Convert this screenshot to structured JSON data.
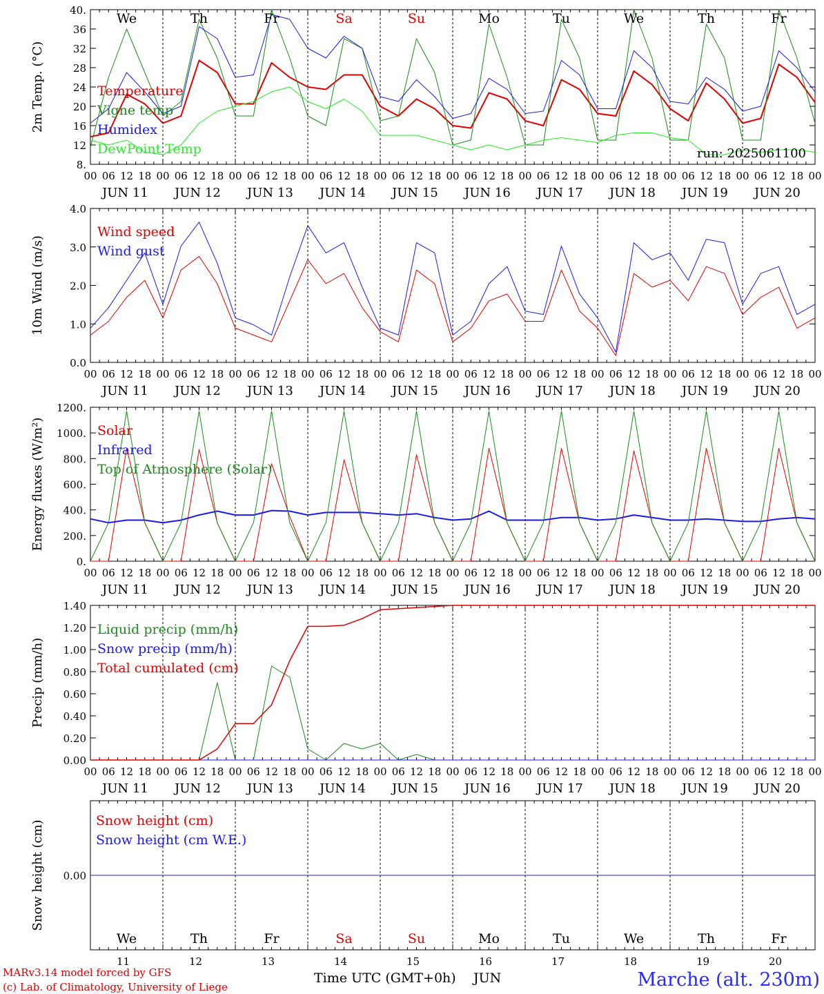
{
  "chart_data": [
    {
      "type": "line",
      "ylabel": "2m Temp. (°C)",
      "ylim": [
        8,
        40
      ],
      "yticks": [
        "8.",
        "12",
        "16",
        "20",
        "24",
        "28",
        "32",
        "36",
        "40."
      ],
      "days": [
        {
          "label": "We",
          "color": "#000000"
        },
        {
          "label": "Th",
          "color": "#000000"
        },
        {
          "label": "Fr",
          "color": "#000000"
        },
        {
          "label": "Sa",
          "color": "#e00000"
        },
        {
          "label": "Su",
          "color": "#e00000"
        },
        {
          "label": "Mo",
          "color": "#000000"
        },
        {
          "label": "Tu",
          "color": "#000000"
        },
        {
          "label": "We",
          "color": "#000000"
        },
        {
          "label": "Th",
          "color": "#000000"
        },
        {
          "label": "Fr",
          "color": "#000000"
        }
      ],
      "annotation": "run: 2025061100",
      "x": [
        "11 00",
        "11 06",
        "11 12",
        "11 18",
        "12 00",
        "12 06",
        "12 12",
        "12 18",
        "13 00",
        "13 06",
        "13 12",
        "13 18",
        "14 00",
        "14 06",
        "14 12",
        "14 18",
        "15 00",
        "15 06",
        "15 12",
        "15 18",
        "16 00",
        "16 06",
        "16 12",
        "16 18",
        "17 00",
        "17 06",
        "17 12",
        "17 18",
        "18 00",
        "18 06",
        "18 12",
        "18 18",
        "19 00",
        "19 06",
        "19 12",
        "19 18",
        "20 00",
        "20 06",
        "20 12",
        "20 18",
        "21 00"
      ],
      "series": [
        {
          "name": "Temperature",
          "color": "#e00000",
          "width": 2,
          "values": [
            13.7,
            14.5,
            22.5,
            20.5,
            16.5,
            18,
            29.5,
            27,
            20.5,
            20.5,
            29,
            26,
            24,
            23.5,
            26.5,
            26.5,
            20,
            18,
            21.5,
            19.5,
            16,
            15.5,
            22.8,
            21.5,
            17,
            16,
            25.5,
            23.5,
            18.5,
            18,
            27.3,
            24.5,
            19.5,
            17,
            24.8,
            21.5,
            16.5,
            17.5,
            28.7,
            26,
            20.8
          ]
        },
        {
          "name": "Vigne temp",
          "color": "#1a8a1a",
          "width": 1,
          "values": [
            11.5,
            26,
            36,
            27,
            18,
            21,
            38,
            30,
            18,
            18,
            40,
            30,
            18,
            16,
            34,
            32,
            17,
            18,
            34,
            27,
            12,
            13,
            37,
            26,
            12,
            12,
            38,
            30,
            13,
            13,
            40,
            30,
            13,
            13,
            37,
            30,
            13,
            13,
            40,
            30,
            16.5
          ]
        },
        {
          "name": "Humidex",
          "color": "#1a1aee",
          "width": 1,
          "values": [
            16.5,
            19.5,
            27,
            23,
            18.5,
            20,
            36.5,
            34,
            26,
            26.5,
            39,
            38,
            32,
            30,
            34.5,
            32,
            22,
            21,
            25.5,
            22,
            17.5,
            18.5,
            25.8,
            23.5,
            18.5,
            19,
            29.5,
            26.5,
            19.5,
            19.5,
            31.5,
            28,
            21,
            20.5,
            26,
            23.5,
            19,
            20,
            31.5,
            28,
            23
          ]
        },
        {
          "name": "DewPoint Temp",
          "color": "#22ee22",
          "width": 1,
          "values": [
            13,
            12,
            13,
            10.5,
            10,
            12,
            16.5,
            19,
            20,
            21,
            23,
            24,
            21,
            19.5,
            21.5,
            19,
            14,
            14,
            14,
            13,
            12,
            11,
            12,
            11,
            12,
            13,
            13.5,
            13,
            12.5,
            14,
            14.5,
            14.5,
            13.5,
            13,
            10,
            10,
            11,
            10.5,
            11,
            11,
            10.5
          ]
        }
      ]
    },
    {
      "type": "line",
      "ylabel": "10m Wind (m/s)",
      "ylim": [
        0,
        4.5
      ],
      "yticks": [
        "0.0",
        "1.0",
        "2.0",
        "3.0",
        "4.0"
      ],
      "x": [
        "11 00",
        "11 06",
        "11 12",
        "11 18",
        "12 00",
        "12 06",
        "12 12",
        "12 18",
        "13 00",
        "13 06",
        "13 12",
        "13 18",
        "14 00",
        "14 06",
        "14 12",
        "14 18",
        "15 00",
        "15 06",
        "15 12",
        "15 18",
        "16 00",
        "16 06",
        "16 12",
        "16 18",
        "17 00",
        "17 06",
        "17 12",
        "17 18",
        "18 00",
        "18 06",
        "18 12",
        "18 18",
        "19 00",
        "19 06",
        "19 12",
        "19 18",
        "20 00",
        "20 06",
        "20 12",
        "20 18",
        "21 00"
      ],
      "series": [
        {
          "name": "Wind speed",
          "color": "#e00000",
          "width": 1,
          "values": [
            0.8,
            1.2,
            1.9,
            2.4,
            1.3,
            2.7,
            3.1,
            2.3,
            1.0,
            0.8,
            0.6,
            1.8,
            3.0,
            2.3,
            2.6,
            1.6,
            0.9,
            0.6,
            2.7,
            2.3,
            0.6,
            1.0,
            1.8,
            2.0,
            1.2,
            1.2,
            2.7,
            1.5,
            1.0,
            0.2,
            2.6,
            2.2,
            2.4,
            1.8,
            2.8,
            2.6,
            1.4,
            1.9,
            2.2,
            1.0,
            1.3
          ]
        },
        {
          "name": "Wind gust",
          "color": "#1a1aee",
          "width": 1,
          "values": [
            1.0,
            1.6,
            2.4,
            3.2,
            1.7,
            3.4,
            4.1,
            2.9,
            1.3,
            1.1,
            0.8,
            2.5,
            4.0,
            3.2,
            3.5,
            2.2,
            1.0,
            0.8,
            3.5,
            3.2,
            0.8,
            1.2,
            2.3,
            2.8,
            1.5,
            1.4,
            3.4,
            2.0,
            1.3,
            0.3,
            3.5,
            3.0,
            3.2,
            2.4,
            3.6,
            3.5,
            1.7,
            2.6,
            2.8,
            1.4,
            1.7
          ]
        }
      ]
    },
    {
      "type": "line",
      "ylabel": "Energy fluxes (W/m²)",
      "ylim": [
        0,
        1200
      ],
      "yticks": [
        "0.",
        "200.",
        "400.",
        "600.",
        "800.",
        "1000.",
        "1200."
      ],
      "x": [
        "11 00",
        "11 06",
        "11 12",
        "11 18",
        "12 00",
        "12 06",
        "12 12",
        "12 18",
        "13 00",
        "13 06",
        "13 12",
        "13 18",
        "14 00",
        "14 06",
        "14 12",
        "14 18",
        "15 00",
        "15 06",
        "15 12",
        "15 18",
        "16 00",
        "16 06",
        "16 12",
        "16 18",
        "17 00",
        "17 06",
        "17 12",
        "17 18",
        "18 00",
        "18 06",
        "18 12",
        "18 18",
        "19 00",
        "19 06",
        "19 12",
        "19 18",
        "20 00",
        "20 06",
        "20 12",
        "20 18",
        "21 00"
      ],
      "series": [
        {
          "name": "Solar",
          "color": "#e00000",
          "width": 1,
          "values": [
            0,
            0,
            880,
            300,
            0,
            0,
            870,
            300,
            0,
            0,
            760,
            350,
            0,
            0,
            790,
            300,
            0,
            0,
            830,
            300,
            0,
            0,
            880,
            300,
            0,
            0,
            880,
            300,
            0,
            0,
            860,
            300,
            0,
            0,
            880,
            300,
            0,
            0,
            880,
            300,
            0
          ]
        },
        {
          "name": "Infrared",
          "color": "#1a1aee",
          "width": 2,
          "values": [
            330,
            300,
            320,
            320,
            300,
            320,
            360,
            390,
            360,
            360,
            395,
            390,
            360,
            380,
            380,
            380,
            370,
            360,
            370,
            340,
            320,
            330,
            390,
            320,
            320,
            320,
            340,
            340,
            320,
            330,
            360,
            340,
            320,
            320,
            330,
            320,
            310,
            310,
            330,
            340,
            330
          ]
        },
        {
          "name": "Top of Atmosphere (Solar)",
          "color": "#1a8a1a",
          "width": 1,
          "values": [
            0,
            300,
            1170,
            300,
            0,
            300,
            1170,
            300,
            0,
            300,
            1170,
            300,
            0,
            300,
            1170,
            300,
            0,
            300,
            1170,
            300,
            0,
            300,
            1170,
            300,
            0,
            300,
            1170,
            300,
            0,
            300,
            1170,
            300,
            0,
            300,
            1170,
            300,
            0,
            300,
            1170,
            300,
            0
          ]
        }
      ]
    },
    {
      "type": "line",
      "ylabel": "Precip (mm/h)",
      "ylim": [
        0,
        1.4
      ],
      "yticks": [
        "0.00",
        "0.20",
        "0.40",
        "0.60",
        "0.80",
        "1.00",
        "1.20",
        "1.40"
      ],
      "x": [
        "11 00",
        "11 06",
        "11 12",
        "11 18",
        "12 00",
        "12 06",
        "12 12",
        "12 18",
        "13 00",
        "13 06",
        "13 12",
        "13 18",
        "14 00",
        "14 06",
        "14 12",
        "14 18",
        "15 00",
        "15 06",
        "15 12",
        "15 18",
        "16 00",
        "16 06",
        "16 12",
        "16 18",
        "17 00",
        "17 06",
        "17 12",
        "17 18",
        "18 00",
        "18 06",
        "18 12",
        "18 18",
        "19 00",
        "19 06",
        "19 12",
        "19 18",
        "20 00",
        "20 06",
        "20 12",
        "20 18",
        "21 00"
      ],
      "series": [
        {
          "name": "Liquid precip (mm/h)",
          "color": "#1a8a1a",
          "width": 1,
          "values": [
            0,
            0,
            0,
            0,
            0,
            0,
            0,
            0.7,
            0,
            0,
            0.85,
            0.75,
            0.1,
            0,
            0.15,
            0.1,
            0.15,
            0,
            0.05,
            0,
            0,
            0,
            0,
            0,
            0,
            0,
            0,
            0,
            0,
            0,
            0,
            0,
            0,
            0,
            0,
            0,
            0,
            0,
            0,
            0,
            0
          ]
        },
        {
          "name": "Snow precip (mm/h)",
          "color": "#1a1aee",
          "width": 1,
          "values": [
            0,
            0,
            0,
            0,
            0,
            0,
            0,
            0,
            0,
            0,
            0,
            0,
            0,
            0,
            0,
            0,
            0,
            0,
            0,
            0,
            0,
            0,
            0,
            0,
            0,
            0,
            0,
            0,
            0,
            0,
            0,
            0,
            0,
            0,
            0,
            0,
            0,
            0,
            0,
            0,
            0
          ]
        },
        {
          "name": "Total cumulated (cm)",
          "color": "#e00000",
          "width": 1.5,
          "values": [
            0,
            0,
            0,
            0,
            0,
            0,
            0,
            0.1,
            0.33,
            0.33,
            0.5,
            0.9,
            1.21,
            1.21,
            1.22,
            1.28,
            1.36,
            1.37,
            1.38,
            1.39,
            1.4,
            1.4,
            1.4,
            1.4,
            1.4,
            1.4,
            1.4,
            1.4,
            1.4,
            1.4,
            1.4,
            1.4,
            1.4,
            1.4,
            1.4,
            1.4,
            1.4,
            1.4,
            1.4,
            1.4,
            1.4
          ]
        }
      ]
    },
    {
      "type": "line",
      "ylabel": "Snow height (cm)",
      "ylim": [
        -1,
        1
      ],
      "yticks": [
        "0.00"
      ],
      "x": [
        "11 00",
        "21 00"
      ],
      "series": [
        {
          "name": "Snow height (cm)",
          "color": "#e00000",
          "width": 1,
          "values": [
            0,
            0
          ]
        },
        {
          "name": "Snow height (cm W.E.)",
          "color": "#1a1aee",
          "width": 1,
          "values": [
            0,
            0
          ]
        }
      ]
    }
  ],
  "x_axis": {
    "hour_labels": [
      "00",
      "06",
      "12",
      "18"
    ],
    "final_hour": "00",
    "date_labels": [
      "JUN 11",
      "JUN 12",
      "JUN 13",
      "JUN 14",
      "JUN 15",
      "JUN 16",
      "JUN 17",
      "JUN 18",
      "JUN 19",
      "JUN 20"
    ],
    "bottom_numbers": [
      "11",
      "12",
      "13",
      "14",
      "15",
      "16",
      "17",
      "18",
      "19",
      "20"
    ]
  },
  "footer": {
    "model": "MARv3.14 model forced by GFS",
    "copyright": "(c) Lab. of Climatology, University of Liege",
    "axis_title": "Time UTC (GMT+0h)",
    "month": "JUN",
    "station": "Marche (alt. 230m)"
  }
}
